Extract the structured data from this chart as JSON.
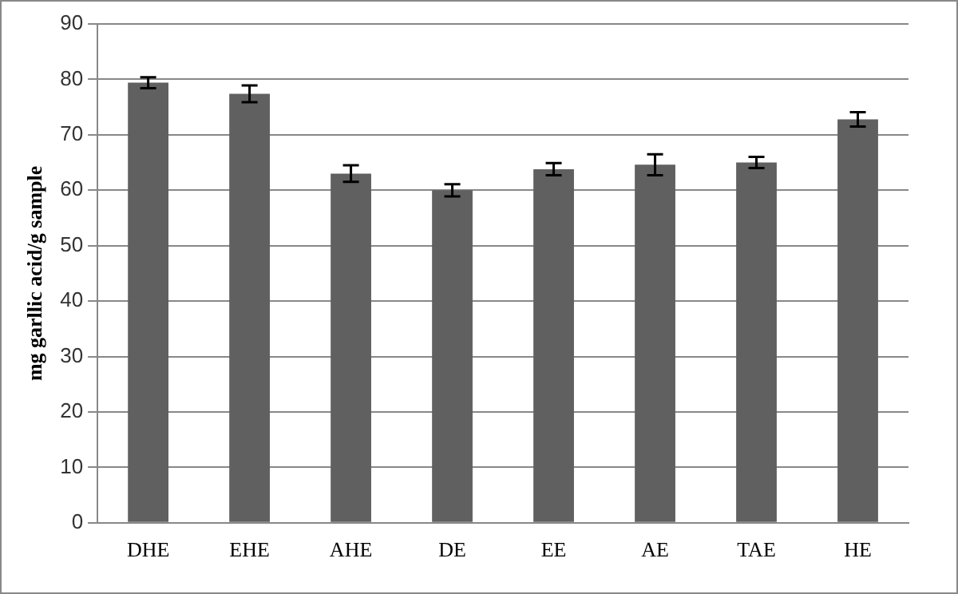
{
  "chart_data": {
    "type": "bar",
    "ylabel": "mg garllic acid/g sample",
    "categories": [
      "DHE",
      "EHE",
      "AHE",
      "DE",
      "EE",
      "AE",
      "TAE",
      "HE"
    ],
    "values": [
      79.4,
      77.4,
      63,
      60,
      63.8,
      64.6,
      65,
      72.8
    ],
    "errors": [
      1,
      1.5,
      1.5,
      1.1,
      1.1,
      1.9,
      1,
      1.3
    ],
    "color": "#606060",
    "ylim": [
      0,
      90
    ],
    "yticks": [
      0,
      10,
      20,
      30,
      40,
      50,
      60,
      70,
      80,
      90
    ],
    "grid": "y",
    "legend": false
  }
}
